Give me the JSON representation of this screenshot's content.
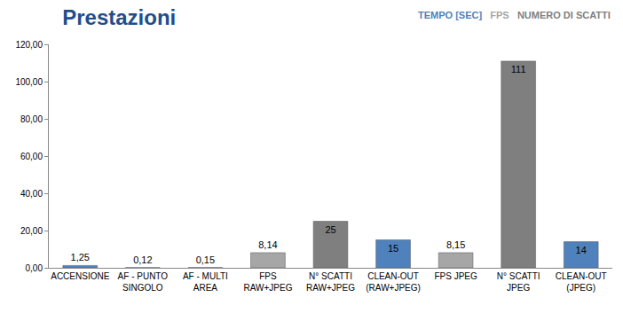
{
  "chart_data": {
    "type": "bar",
    "title": "Prestazioni",
    "categories": [
      "ACCENSIONE",
      "AF - PUNTO\nSINGOLO",
      "AF - MULTI\nAREA",
      "FPS\nRAW+JPEG",
      "N° SCATTI\nRAW+JPEG",
      "CLEAN-OUT\n(RAW+JPEG)",
      "FPS JPEG",
      "N° SCATTI\nJPEG",
      "CLEAN-OUT\n(JPEG)"
    ],
    "series": [
      {
        "name": "TEMPO [SEC]",
        "color": "#4f81bd",
        "values": [
          1.25,
          0.12,
          0.15,
          null,
          null,
          15,
          null,
          null,
          14
        ],
        "value_labels": [
          "1,25",
          "0,12",
          "0,15",
          null,
          null,
          "15",
          null,
          null,
          "14"
        ]
      },
      {
        "name": "FPS",
        "color": "#a6a6a6",
        "values": [
          null,
          null,
          null,
          8.14,
          null,
          null,
          8.15,
          null,
          null
        ],
        "value_labels": [
          null,
          null,
          null,
          "8,14",
          null,
          null,
          "8,15",
          null,
          null
        ]
      },
      {
        "name": "NUMERO DI SCATTI",
        "color": "#7f7f7f",
        "values": [
          null,
          null,
          null,
          null,
          25,
          null,
          null,
          111,
          null
        ],
        "value_labels": [
          null,
          null,
          null,
          null,
          "25",
          null,
          null,
          "111",
          null
        ]
      }
    ],
    "ylim": [
      0,
      120
    ],
    "yticks": [
      {
        "value": 0,
        "label": "0,00"
      },
      {
        "value": 20,
        "label": "20,00"
      },
      {
        "value": 40,
        "label": "40,00"
      },
      {
        "value": 60,
        "label": "60,00"
      },
      {
        "value": 80,
        "label": "80,00"
      },
      {
        "value": 100,
        "label": "100,00"
      },
      {
        "value": 120,
        "label": "120,00"
      }
    ],
    "grid": false,
    "legend": "top right",
    "data_labels": true
  }
}
